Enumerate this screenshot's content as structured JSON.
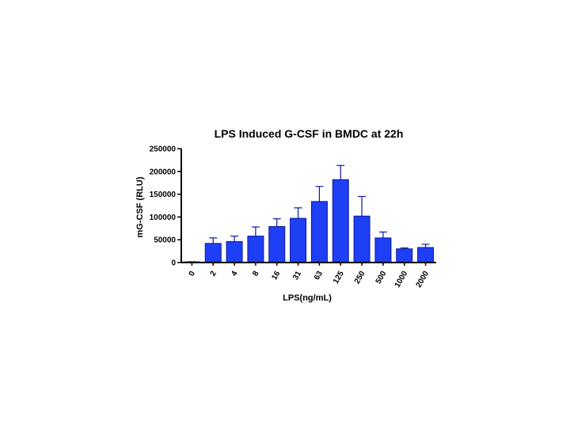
{
  "chart_data": {
    "type": "bar",
    "title": "LPS Induced G-CSF in BMDC at 22h",
    "xlabel": "LPS(ng/mL)",
    "ylabel": "mG-CSF (RLU)",
    "categories": [
      "0",
      "2",
      "4",
      "8",
      "16",
      "31",
      "63",
      "125",
      "250",
      "500",
      "1000",
      "2000"
    ],
    "values": [
      1500,
      42000,
      46000,
      58000,
      79000,
      97000,
      134000,
      182000,
      102000,
      54000,
      30000,
      33000
    ],
    "error_upper": [
      300,
      12000,
      12000,
      20000,
      17000,
      23000,
      33000,
      31000,
      43000,
      13000,
      2000,
      7000
    ],
    "ylim": [
      0,
      250000
    ],
    "yticks": [
      0,
      50000,
      100000,
      150000,
      200000,
      250000
    ],
    "grid": false,
    "bar_color": "#1f3ff5",
    "bar_edge_color": "#0a1a9a"
  }
}
